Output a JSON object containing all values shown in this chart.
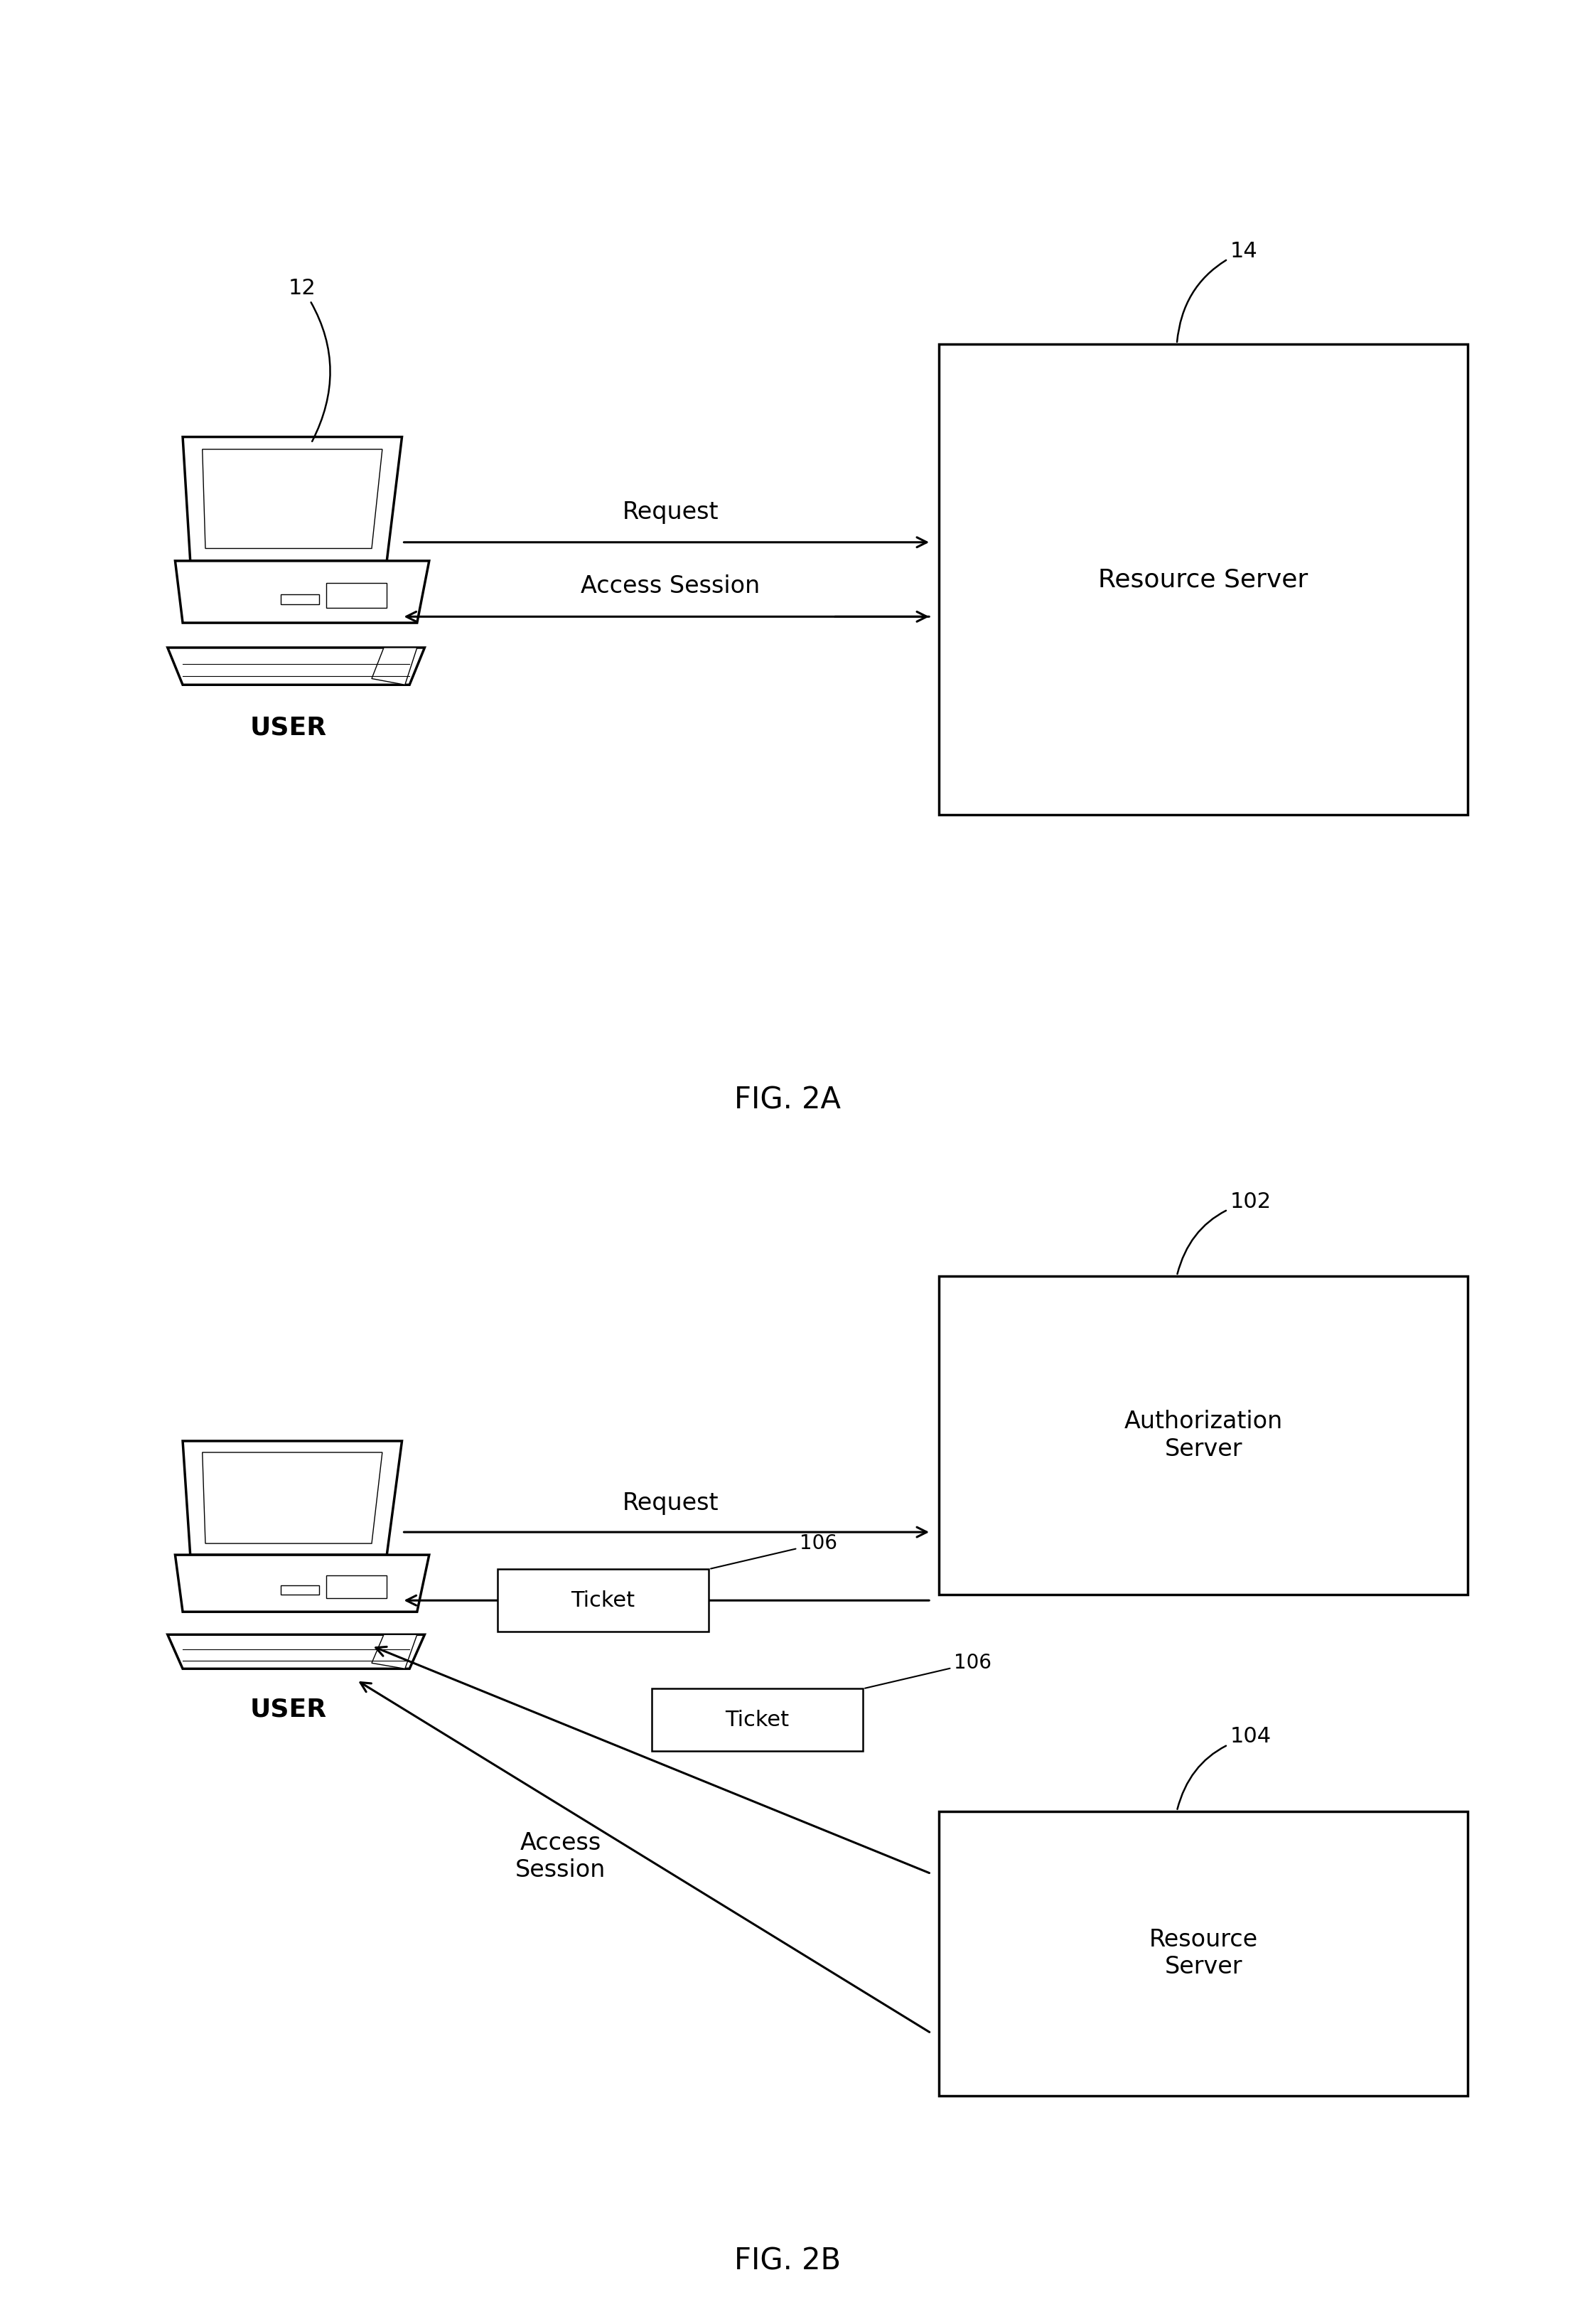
{
  "fig_width": 22.16,
  "fig_height": 32.69,
  "bg_color": "#ffffff",
  "fig2a": {
    "title": "FIG. 2A",
    "user_label": "USER",
    "user_ref": "12",
    "server_label": "Resource Server",
    "server_ref": "14",
    "arrow1_label": "Request",
    "arrow2_label": "Access Session"
  },
  "fig2b": {
    "title": "FIG. 2B",
    "user_label": "USER",
    "auth_server_label": "Authorization\nServer",
    "auth_server_ref": "102",
    "res_server_label": "Resource\nServer",
    "res_server_ref": "104",
    "ticket_ref": "106",
    "arrow1_label": "Request",
    "arrow2_label": "Ticket",
    "arrow3_label": "Ticket",
    "arrow4_label": "Access\nSession"
  }
}
